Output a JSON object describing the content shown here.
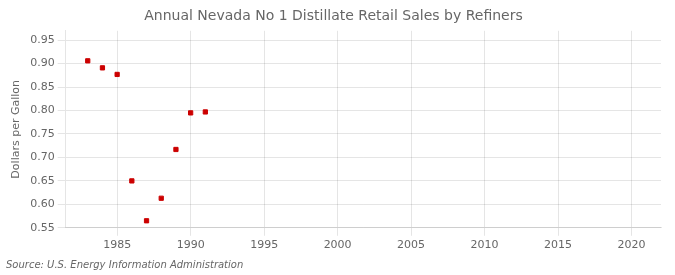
{
  "chart_data": {
    "type": "scatter",
    "title": "Annual Nevada No 1 Distillate Retail Sales by Refiners",
    "ylabel": "Dollars per Gallon",
    "annotation": "Source: U.S. Energy Information Administration",
    "x": [
      1983,
      1984,
      1985,
      1986,
      1987,
      1988,
      1989,
      1990,
      1991
    ],
    "values": [
      0.906,
      0.891,
      0.877,
      0.65,
      0.565,
      0.613,
      0.717,
      0.795,
      0.797
    ],
    "color": "#cc0000",
    "marker": "square",
    "xlim": [
      1981.5,
      2022
    ],
    "ylim": [
      0.55,
      0.97
    ],
    "xticks": [
      1985,
      1990,
      1995,
      2000,
      2005,
      2010,
      2015,
      2020
    ],
    "yticks": [
      0.55,
      {
        "value": 0.6,
        "label": "0.60"
      },
      0.65,
      {
        "value": 0.7,
        "label": "0.70"
      },
      0.75,
      {
        "value": 0.8,
        "label": "0.80"
      },
      0.85,
      {
        "value": 0.9,
        "label": "0.90"
      },
      0.95
    ],
    "grid": true
  }
}
